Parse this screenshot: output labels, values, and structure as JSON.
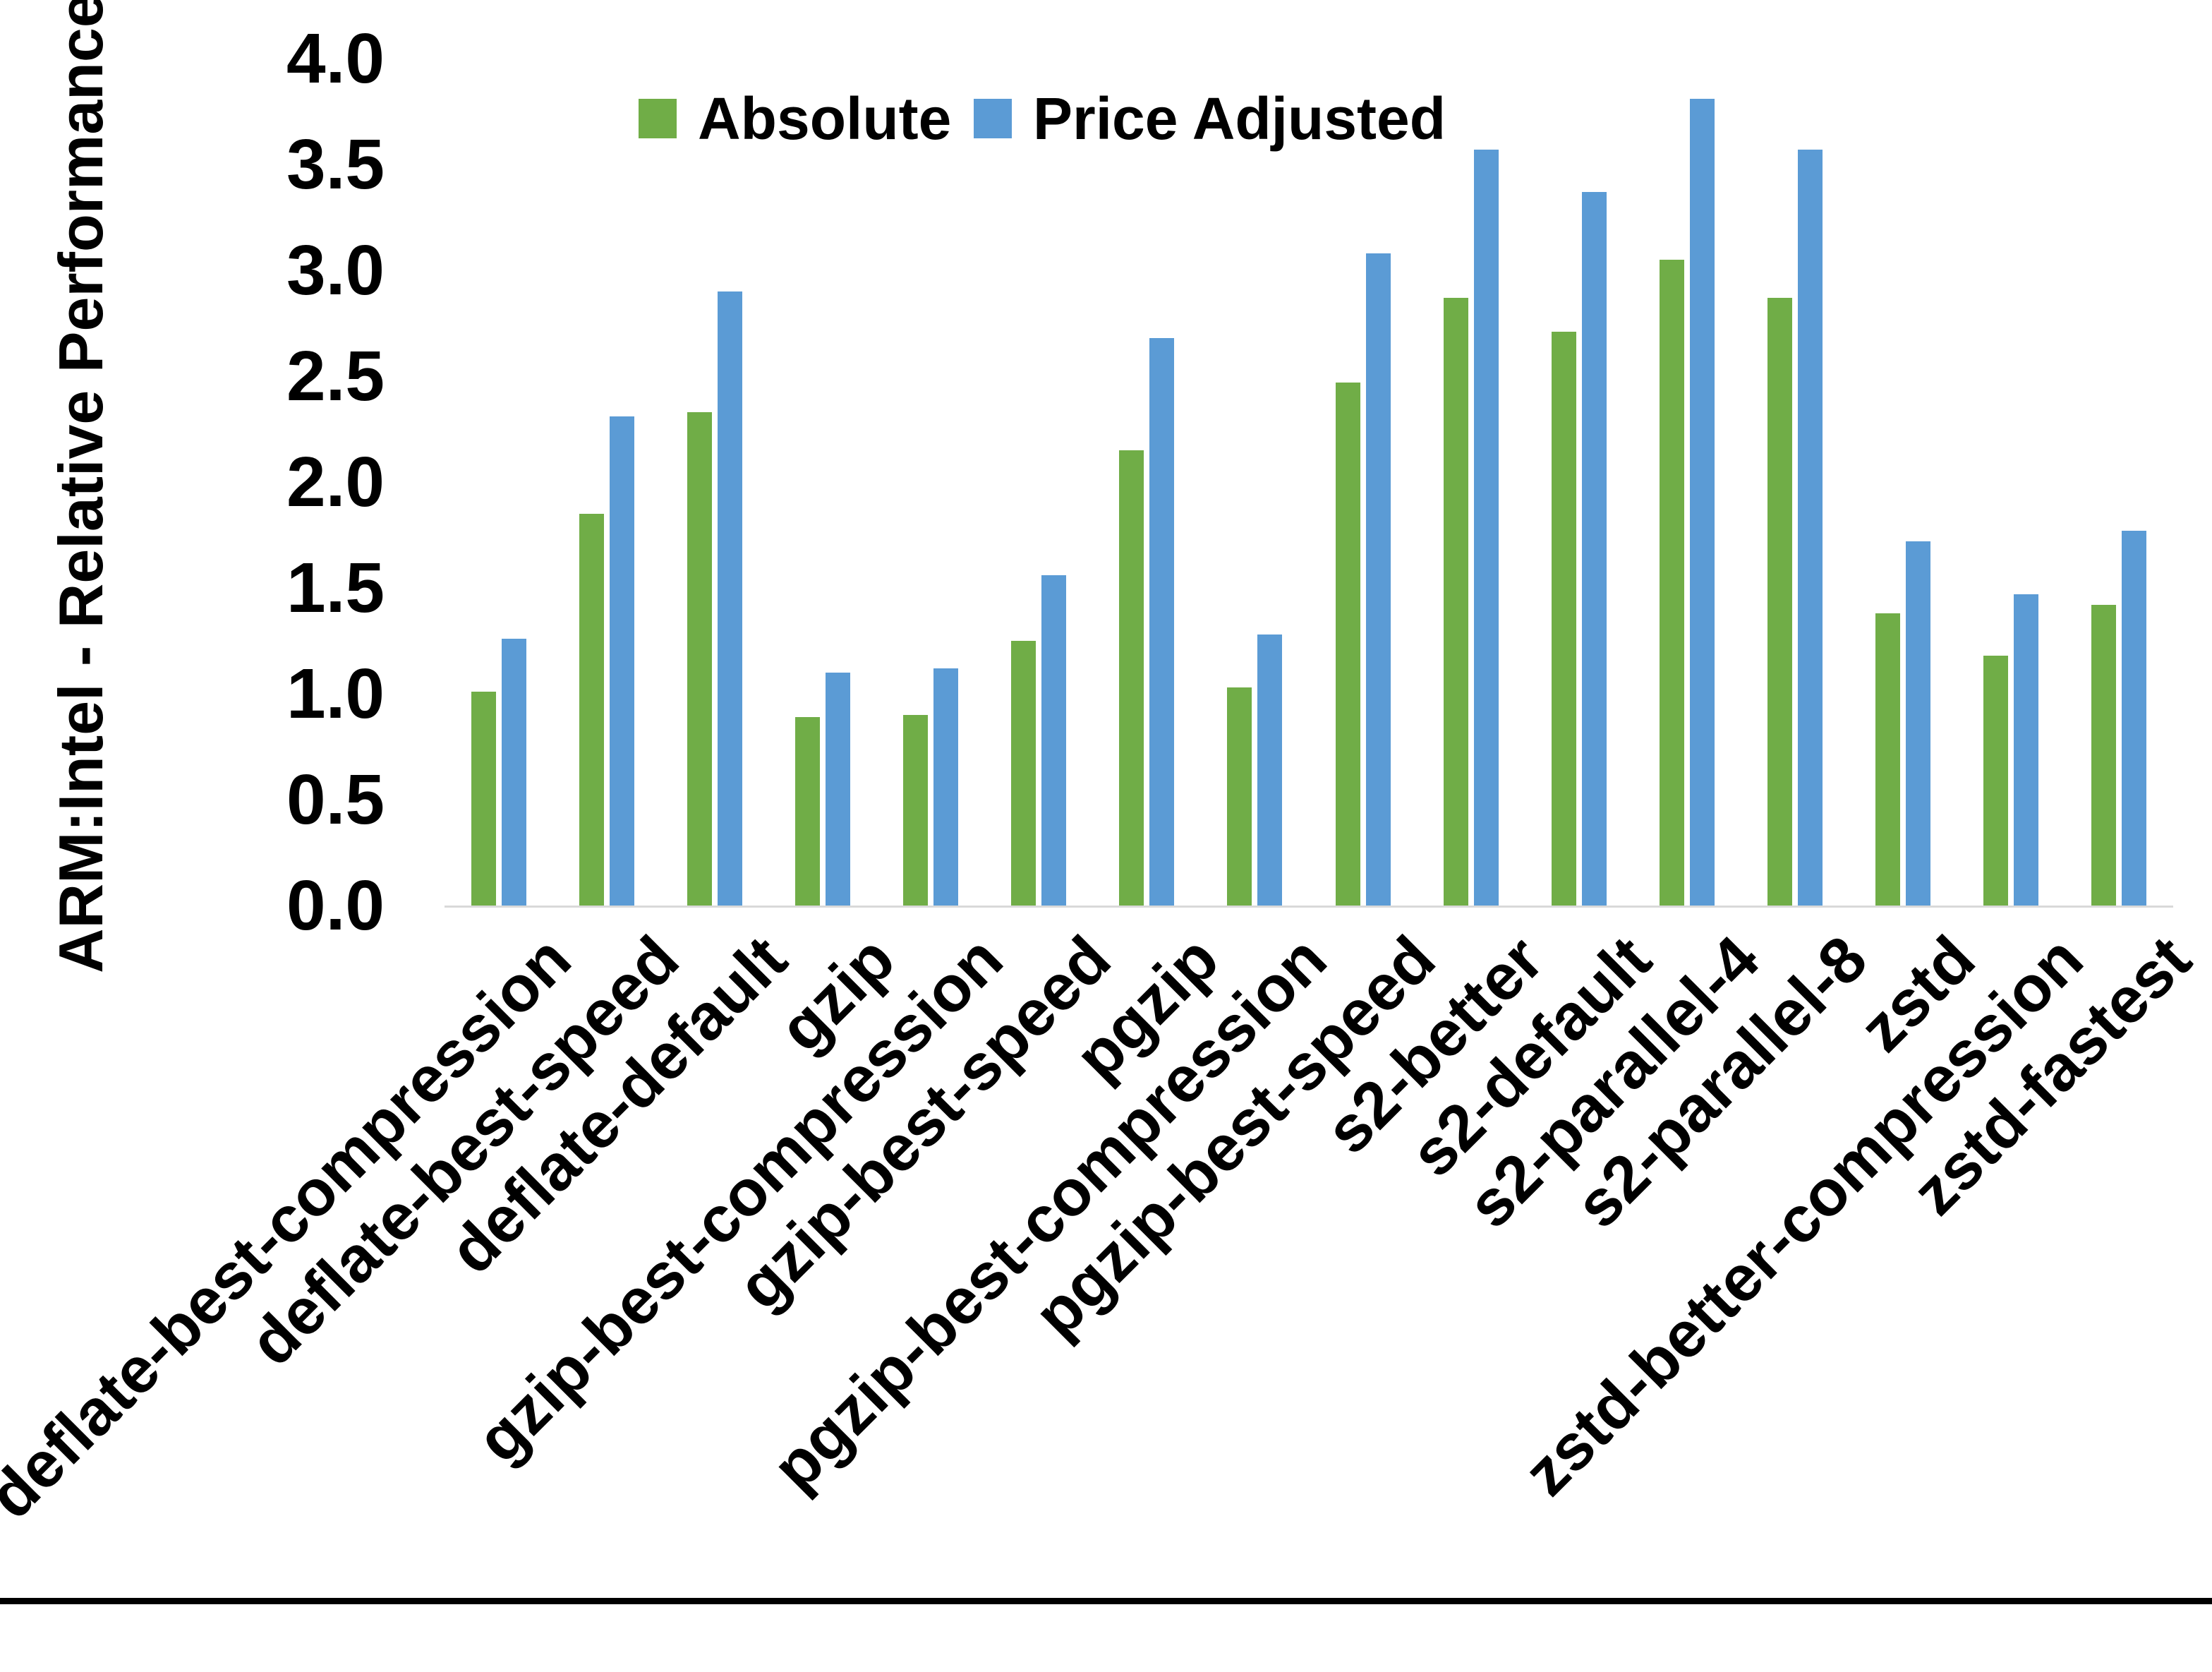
{
  "chart_data": {
    "type": "bar",
    "title": "",
    "ylabel": "ARM:Intel - Relative Performance",
    "xlabel": "",
    "ylim": [
      0.0,
      4.0
    ],
    "ytick_step": 0.5,
    "yticks": [
      "0.0",
      "0.5",
      "1.0",
      "1.5",
      "2.0",
      "2.5",
      "3.0",
      "3.5",
      "4.0"
    ],
    "grid": false,
    "legend_position": "top-center",
    "categories": [
      "deflate-best-compression",
      "deflate-best-speed",
      "deflate-default",
      "gzip",
      "gzip-best-compression",
      "gzip-best-speed",
      "pgzip",
      "pgzip-best-compression",
      "pgzip-best-speed",
      "s2-better",
      "s2-default",
      "s2-parallel-4",
      "s2-parallel-8",
      "zstd",
      "zstd-better-compression",
      "zstd-fastest"
    ],
    "series": [
      {
        "name": "Absolute",
        "color": "#70AD47",
        "values": [
          1.01,
          1.85,
          2.33,
          0.89,
          0.9,
          1.25,
          2.15,
          1.03,
          2.47,
          2.87,
          2.71,
          3.05,
          2.87,
          1.38,
          1.18,
          1.42
        ]
      },
      {
        "name": "Price Adjusted",
        "color": "#5B9BD5",
        "values": [
          1.26,
          2.31,
          2.9,
          1.1,
          1.12,
          1.56,
          2.68,
          1.28,
          3.08,
          3.57,
          3.37,
          3.81,
          3.57,
          1.72,
          1.47,
          1.77
        ]
      }
    ],
    "axis_line_color": "#D9D9D9",
    "text_color": "#000000",
    "bottom_border_color": "#000000"
  }
}
